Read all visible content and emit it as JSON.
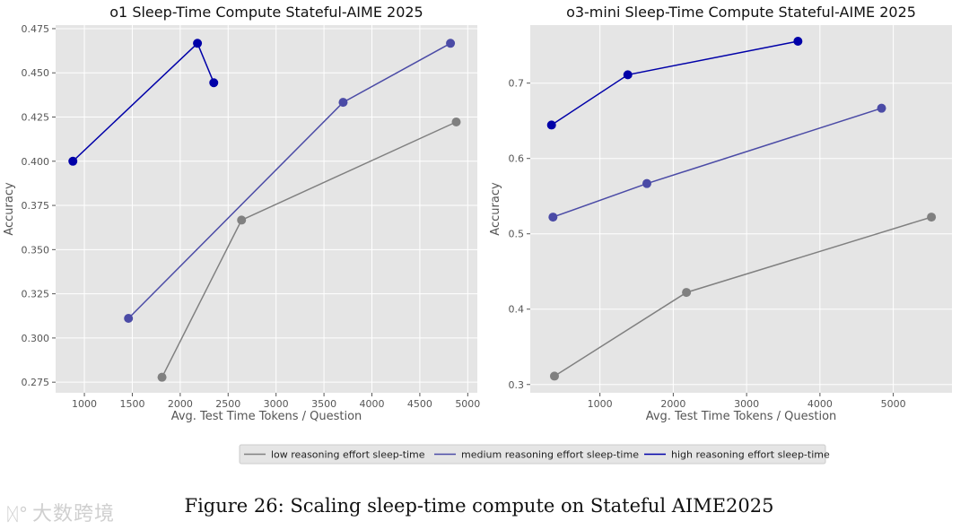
{
  "chart_data": [
    {
      "type": "line",
      "title": "o1 Sleep-Time Compute Stateful-AIME 2025",
      "xlabel": "Avg. Test Time Tokens / Question",
      "ylabel": "Accuracy",
      "xlim": [
        700,
        5100
      ],
      "ylim": [
        0.269,
        0.477
      ],
      "xticks": [
        1000,
        1500,
        2000,
        2500,
        3000,
        3500,
        4000,
        4500,
        5000
      ],
      "yticks": [
        0.275,
        0.3,
        0.325,
        0.35,
        0.375,
        0.4,
        0.425,
        0.45,
        0.475
      ],
      "ytick_labels": [
        "0.275",
        "0.300",
        "0.325",
        "0.350",
        "0.375",
        "0.400",
        "0.425",
        "0.450",
        "0.475"
      ],
      "series": [
        {
          "name": "low reasoning effort sleep-time",
          "color": "#808080",
          "x": [
            1810,
            2640,
            4880
          ],
          "y": [
            0.2778,
            0.3667,
            0.4222
          ]
        },
        {
          "name": "medium reasoning effort sleep-time",
          "color": "#4b4ba6",
          "x": [
            1460,
            3700,
            4820
          ],
          "y": [
            0.3111,
            0.4333,
            0.4667
          ]
        },
        {
          "name": "high reasoning effort sleep-time",
          "color": "#0000a8",
          "x": [
            880,
            2180,
            2350
          ],
          "y": [
            0.4,
            0.4667,
            0.4444
          ]
        }
      ]
    },
    {
      "type": "line",
      "title": "o3-mini Sleep-Time Compute Stateful-AIME 2025",
      "xlabel": "Avg. Test Time Tokens / Question",
      "ylabel": "Accuracy",
      "xlim": [
        50,
        5800
      ],
      "ylim": [
        0.289,
        0.777
      ],
      "xticks": [
        1000,
        2000,
        3000,
        4000,
        5000
      ],
      "yticks": [
        0.3,
        0.4,
        0.5,
        0.6,
        0.7
      ],
      "ytick_labels": [
        "0.3",
        "0.4",
        "0.5",
        "0.6",
        "0.7"
      ],
      "series": [
        {
          "name": "low reasoning effort sleep-time",
          "color": "#808080",
          "x": [
            380,
            2180,
            5520
          ],
          "y": [
            0.3111,
            0.4222,
            0.5222
          ]
        },
        {
          "name": "medium reasoning effort sleep-time",
          "color": "#4b4ba6",
          "x": [
            360,
            1640,
            4840
          ],
          "y": [
            0.5222,
            0.5667,
            0.6667
          ]
        },
        {
          "name": "high reasoning effort sleep-time",
          "color": "#0000a8",
          "x": [
            340,
            1380,
            3700
          ],
          "y": [
            0.6444,
            0.7111,
            0.7556
          ]
        }
      ]
    }
  ],
  "legend": {
    "placement": "bottom-center",
    "entries": [
      {
        "label": "low reasoning effort sleep-time",
        "color": "#808080"
      },
      {
        "label": "medium reasoning effort sleep-time",
        "color": "#4b4ba6"
      },
      {
        "label": "high reasoning effort sleep-time",
        "color": "#0000a8"
      }
    ]
  },
  "caption": "Figure 26: Scaling sleep-time compute on Stateful AIME2025",
  "watermark": {
    "text": "大数跨境"
  },
  "colors": {
    "plot_bg": "#e5e5e5",
    "grid": "#ffffff",
    "tick_text": "#555555"
  }
}
